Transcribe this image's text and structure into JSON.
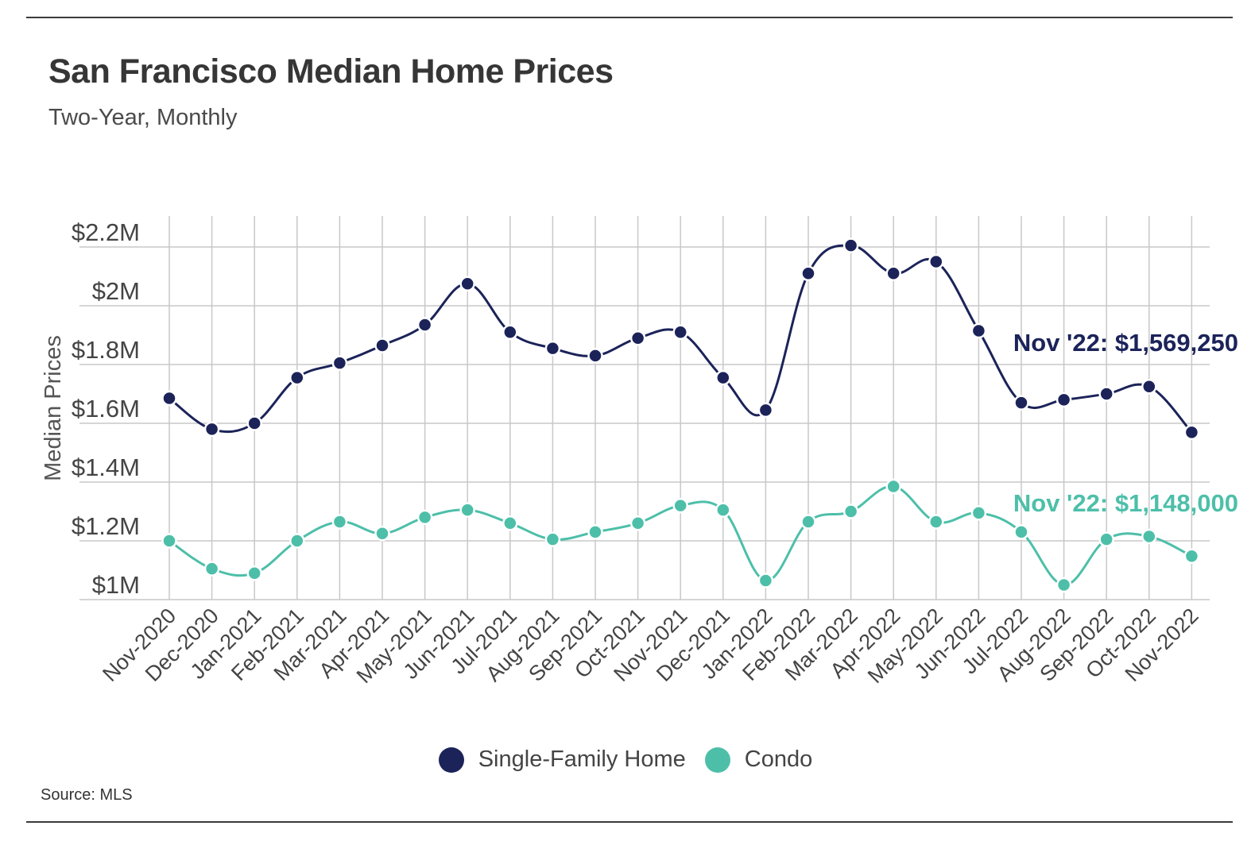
{
  "header": {
    "title": "San Francisco Median Home Prices",
    "subtitle": "Two-Year, Monthly"
  },
  "footer": {
    "source": "Source:  MLS"
  },
  "colors": {
    "single_family": "#1b2359",
    "condo": "#4dbfa9",
    "grid": "#c8c8c8"
  },
  "chart_data": {
    "type": "line",
    "ylabel": "Median Prices",
    "xlabel": "",
    "ylim": [
      1000000,
      2200000
    ],
    "y_ticks": [
      1000000,
      1200000,
      1400000,
      1600000,
      1800000,
      2000000,
      2200000
    ],
    "y_tick_labels": [
      "$1M",
      "$1.2M",
      "$1.4M",
      "$1.6M",
      "$1.8M",
      "$2M",
      "$2.2M"
    ],
    "categories": [
      "Nov-2020",
      "Dec-2020",
      "Jan-2021",
      "Feb-2021",
      "Mar-2021",
      "Apr-2021",
      "May-2021",
      "Jun-2021",
      "Jul-2021",
      "Aug-2021",
      "Sep-2021",
      "Oct-2021",
      "Nov-2021",
      "Dec-2021",
      "Jan-2022",
      "Feb-2022",
      "Mar-2022",
      "Apr-2022",
      "May-2022",
      "Jun-2022",
      "Jul-2022",
      "Aug-2022",
      "Sep-2022",
      "Oct-2022",
      "Nov-2022"
    ],
    "grid": true,
    "legend_position": "bottom-center",
    "series": [
      {
        "name": "Single-Family Home",
        "color": "#1b2359",
        "values": [
          1685000,
          1580000,
          1600000,
          1755000,
          1805000,
          1865000,
          1935000,
          2075000,
          1910000,
          1855000,
          1830000,
          1890000,
          1910000,
          1755000,
          1645000,
          2110000,
          2205000,
          2110000,
          2150000,
          1915000,
          1670000,
          1680000,
          1700000,
          1725000,
          1569250
        ],
        "annotation": "Nov '22: $1,569,250"
      },
      {
        "name": "Condo",
        "color": "#4dbfa9",
        "values": [
          1200000,
          1105000,
          1090000,
          1200000,
          1265000,
          1225000,
          1280000,
          1305000,
          1260000,
          1205000,
          1230000,
          1260000,
          1320000,
          1305000,
          1065000,
          1265000,
          1300000,
          1385000,
          1265000,
          1295000,
          1230000,
          1050000,
          1205000,
          1215000,
          1148000
        ],
        "annotation": "Nov '22: $1,148,000"
      }
    ]
  }
}
